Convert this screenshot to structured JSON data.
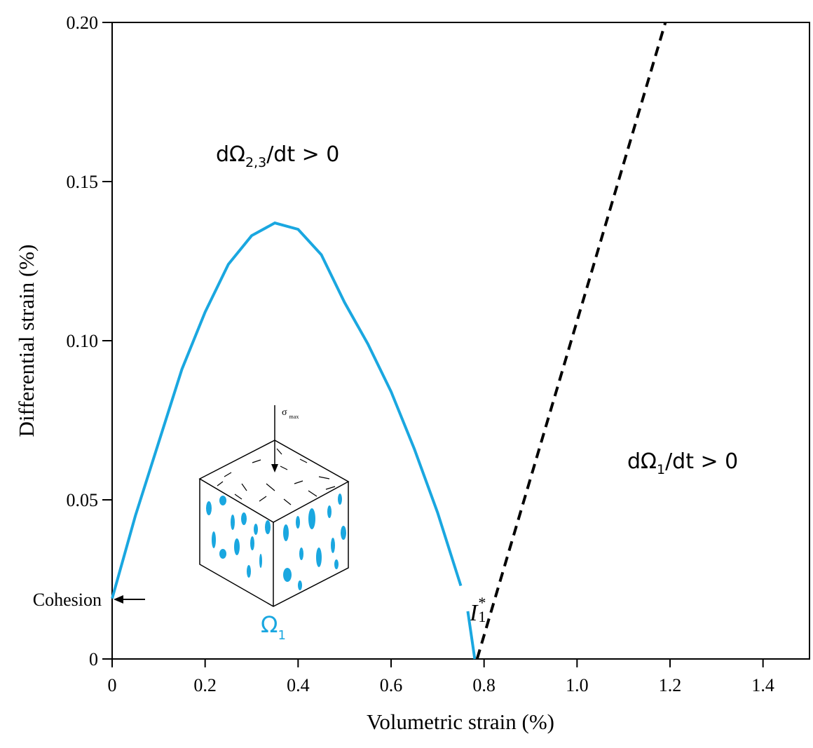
{
  "chart_data": {
    "type": "line",
    "xlabel": "Volumetric strain (%)",
    "ylabel": "Differential strain (%)",
    "xlim": [
      0,
      1.5
    ],
    "ylim": [
      0,
      0.2
    ],
    "xticks": [
      0,
      0.2,
      0.4,
      0.6,
      0.8,
      {
        "value": 1.0,
        "label": "1.0"
      },
      1.2,
      1.4
    ],
    "yticks": [
      0,
      0.05,
      {
        "value": 0.1,
        "label": "0.10"
      },
      0.15,
      {
        "value": 0.2,
        "label": "0.20"
      }
    ],
    "series": [
      {
        "color": "#1aa7e0",
        "style": "solid",
        "x": [
          0,
          0.05,
          0.1,
          0.15,
          0.2,
          0.25,
          0.3,
          0.35,
          0.4,
          0.45,
          0.5,
          0.55,
          0.6,
          0.65,
          0.7,
          0.75,
          0.76,
          0.765,
          0.78
        ],
        "values": [
          0.019,
          0.045,
          0.068,
          0.091,
          0.109,
          0.124,
          0.133,
          0.137,
          0.135,
          0.127,
          0.112,
          0.099,
          0.084,
          0.066,
          0.046,
          0.023,
          null,
          0.015,
          0
        ]
      },
      {
        "color": "#000000",
        "style": "dashed",
        "x": [
          0.785,
          1.19
        ],
        "values": [
          0,
          0.2
        ]
      }
    ],
    "annotations": [
      {
        "prefix": "dΩ",
        "sub": "2,3",
        "suffix": "/dt > 0"
      },
      {
        "prefix": "dΩ",
        "sub": "1",
        "suffix": "/dt > 0"
      }
    ],
    "cohesion_label": "Cohesion",
    "omega_label": {
      "text": "Ω",
      "sub": "1"
    },
    "invariant_label": {
      "text": "I",
      "sub": "1",
      "sup": "*"
    },
    "inset_load_label": {
      "text": "σ",
      "sub": "max"
    }
  }
}
